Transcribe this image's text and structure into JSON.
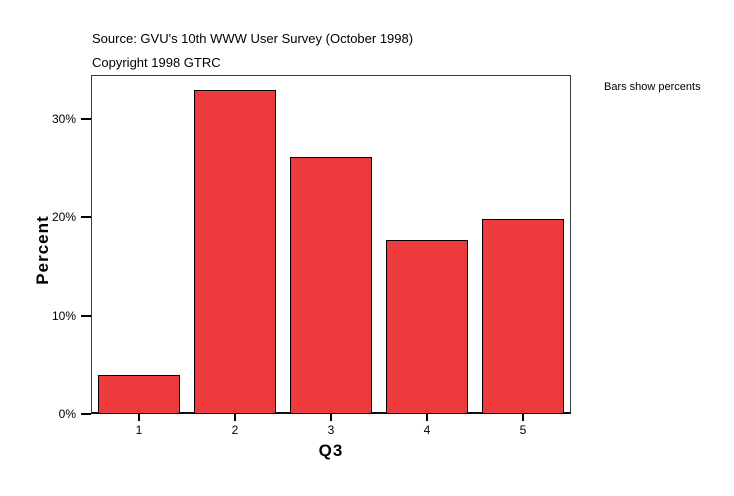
{
  "chart_data": {
    "type": "bar",
    "title": "Source: GVU's 10th WWW User Survey (October 1998)",
    "subtitle": "Copyright 1998 GTRC",
    "annotation": "Bars show percents",
    "categories": [
      "1",
      "2",
      "3",
      "4",
      "5"
    ],
    "values": [
      4.0,
      33.0,
      26.2,
      17.7,
      19.8
    ],
    "xlabel": "Q3",
    "ylabel": "Percent",
    "ylim": [
      0,
      34.5
    ],
    "yticks": [
      0,
      10,
      20,
      30
    ],
    "ytick_suffix": "%",
    "grid": false,
    "legend_position": "none",
    "bar_color": "#ed3a3c",
    "bar_border_color": "#000000"
  }
}
